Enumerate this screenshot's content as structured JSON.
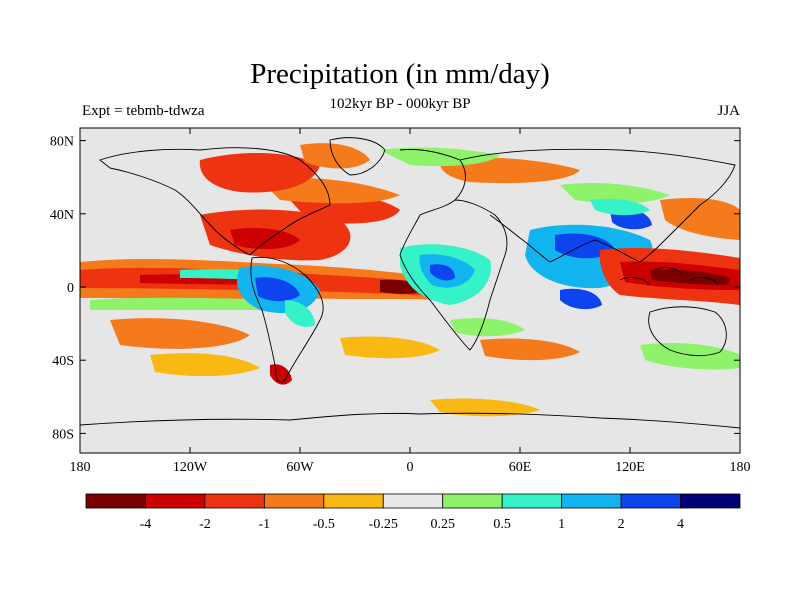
{
  "map": {
    "title": "Precipitation (in mm/day)",
    "subtitle": "102kyr BP - 000kyr BP",
    "left_label": "Expt = tebmb-tdwza",
    "right_label": "JJA",
    "lat_ticks": [
      {
        "value": 80,
        "label": "80N"
      },
      {
        "value": 40,
        "label": "40N"
      },
      {
        "value": 0,
        "label": "0"
      },
      {
        "value": -40,
        "label": "40S"
      },
      {
        "value": -80,
        "label": "80S"
      }
    ],
    "lon_ticks": [
      {
        "value": -180,
        "label": "180"
      },
      {
        "value": -120,
        "label": "120W"
      },
      {
        "value": -60,
        "label": "60W"
      },
      {
        "value": 0,
        "label": "0"
      },
      {
        "value": 60,
        "label": "60E"
      },
      {
        "value": 120,
        "label": "120E"
      },
      {
        "value": 180,
        "label": "180"
      }
    ],
    "colorbar": {
      "colors": [
        "#7a0000",
        "#cc0000",
        "#ee3311",
        "#f57a1b",
        "#fab812",
        "#e8e8e8",
        "#8ef26a",
        "#36f2c8",
        "#12b4ef",
        "#0d44ee",
        "#00007a"
      ],
      "labels": [
        "-4",
        "-2",
        "-1",
        "-0.5",
        "-0.25",
        "0.25",
        "0.5",
        "1",
        "2",
        "4"
      ]
    },
    "land_color": "#e6e6e6"
  }
}
